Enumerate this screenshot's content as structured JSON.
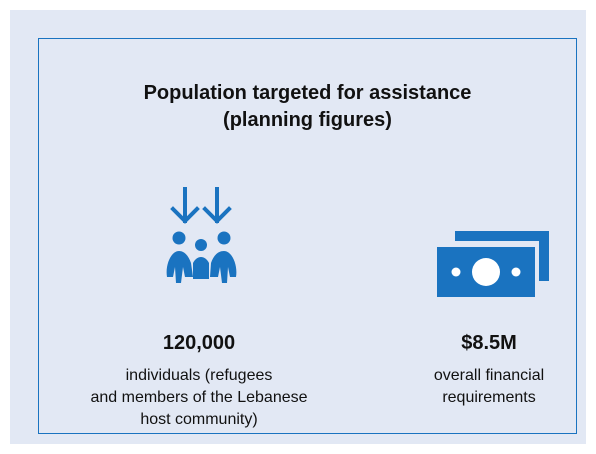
{
  "card": {
    "title_line1": "Population targeted for assistance",
    "title_line2": "(planning figures)"
  },
  "stats": [
    {
      "icon": "people-arrows-icon",
      "value": "120,000",
      "desc_lines": [
        "individuals (refugees",
        "and members of the Lebanese",
        "host community)"
      ]
    },
    {
      "icon": "cash-money-icon",
      "value": "$8.5M",
      "desc_lines": [
        "overall financial",
        "requirements"
      ]
    }
  ],
  "colors": {
    "accent": "#1a73c0",
    "background": "#e2e8f4",
    "text": "#111111"
  }
}
